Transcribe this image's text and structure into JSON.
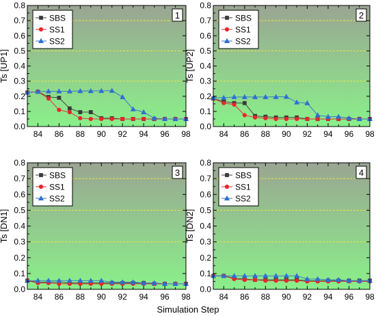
{
  "chart_data": {
    "type": "line",
    "xlabel": "Simulation Step",
    "xlim": [
      83,
      98
    ],
    "ylim": [
      0,
      0.8
    ],
    "x_ticks": [
      84,
      86,
      88,
      90,
      92,
      94,
      96,
      98
    ],
    "y_ticks": [
      0,
      0.1,
      0.2,
      0.3,
      0.4,
      0.5,
      0.6,
      0.7,
      0.8
    ],
    "y_tick_labels": [
      "0.0",
      "0.1",
      "0.2",
      "0.3",
      "0.4",
      "0.5",
      "0.6",
      "0.7",
      "0.8"
    ],
    "reference_lines": [
      0.3,
      0.5,
      0.7
    ],
    "legend_placement": "top-left",
    "colors": {
      "SBS": "#3a3a3a",
      "SS1": "#e8262b",
      "SS2": "#2f6fd1",
      "reference_line": "#f2e63a",
      "background_top": "#9aa592",
      "background_bottom": "#8af08a"
    },
    "panels": [
      {
        "id": "1",
        "ylabel": "Ts [UP1]",
        "x": [
          83,
          84,
          85,
          86,
          87,
          88,
          89,
          90,
          91,
          92,
          93,
          94,
          95,
          96,
          97,
          98
        ],
        "series": [
          {
            "name": "SBS",
            "marker": "square",
            "values": [
              0.225,
              0.23,
              0.195,
              0.19,
              0.12,
              0.095,
              0.095,
              0.055,
              0.055,
              0.05,
              0.05,
              0.05,
              0.05,
              0.05,
              0.05,
              0.05
            ]
          },
          {
            "name": "SS1",
            "marker": "circle",
            "values": [
              0.225,
              0.23,
              0.185,
              0.11,
              0.095,
              0.055,
              0.05,
              0.05,
              0.05,
              0.05,
              0.05,
              0.05,
              0.05,
              0.05,
              0.05,
              0.05
            ]
          },
          {
            "name": "SS2",
            "marker": "triangle",
            "values": [
              0.225,
              0.23,
              0.233,
              0.233,
              0.233,
              0.235,
              0.235,
              0.236,
              0.237,
              0.195,
              0.115,
              0.095,
              0.055,
              0.05,
              0.05,
              0.05
            ]
          }
        ]
      },
      {
        "id": "2",
        "ylabel": "Ts [UP2]",
        "x": [
          83,
          84,
          85,
          86,
          87,
          88,
          89,
          90,
          91,
          92,
          93,
          94,
          95,
          96,
          97,
          98
        ],
        "series": [
          {
            "name": "SBS",
            "marker": "square",
            "values": [
              0.185,
              0.165,
              0.155,
              0.155,
              0.07,
              0.065,
              0.06,
              0.06,
              0.06,
              0.05,
              0.05,
              0.05,
              0.05,
              0.05,
              0.05,
              0.05
            ]
          },
          {
            "name": "SS1",
            "marker": "circle",
            "values": [
              0.185,
              0.155,
              0.145,
              0.075,
              0.06,
              0.055,
              0.05,
              0.05,
              0.05,
              0.05,
              0.05,
              0.05,
              0.05,
              0.05,
              0.05,
              0.05
            ]
          },
          {
            "name": "SS2",
            "marker": "triangle",
            "values": [
              0.19,
              0.19,
              0.195,
              0.195,
              0.195,
              0.195,
              0.196,
              0.197,
              0.16,
              0.155,
              0.075,
              0.065,
              0.065,
              0.055,
              0.05,
              0.05
            ]
          }
        ]
      },
      {
        "id": "3",
        "ylabel": "Ts [DN1]",
        "x": [
          83,
          84,
          85,
          86,
          87,
          88,
          89,
          90,
          91,
          92,
          93,
          94,
          95,
          96,
          97,
          98
        ],
        "series": [
          {
            "name": "SBS",
            "marker": "square",
            "values": [
              0.055,
              0.045,
              0.045,
              0.045,
              0.04,
              0.04,
              0.04,
              0.04,
              0.04,
              0.04,
              0.04,
              0.04,
              0.035,
              0.035,
              0.035,
              0.035
            ]
          },
          {
            "name": "SS1",
            "marker": "circle",
            "values": [
              0.055,
              0.04,
              0.04,
              0.035,
              0.035,
              0.035,
              0.035,
              0.035,
              0.035,
              0.035,
              0.035,
              0.035,
              0.035,
              0.035,
              0.035,
              0.035
            ]
          },
          {
            "name": "SS2",
            "marker": "triangle",
            "values": [
              0.055,
              0.055,
              0.055,
              0.055,
              0.055,
              0.055,
              0.055,
              0.055,
              0.045,
              0.045,
              0.045,
              0.04,
              0.04,
              0.035,
              0.035,
              0.035
            ]
          }
        ]
      },
      {
        "id": "4",
        "ylabel": "Ts [DN2]",
        "x": [
          83,
          84,
          85,
          86,
          87,
          88,
          89,
          90,
          91,
          92,
          93,
          94,
          95,
          96,
          97,
          98
        ],
        "series": [
          {
            "name": "SBS",
            "marker": "square",
            "values": [
              0.085,
              0.085,
              0.07,
              0.065,
              0.06,
              0.06,
              0.06,
              0.06,
              0.06,
              0.055,
              0.055,
              0.055,
              0.055,
              0.055,
              0.055,
              0.055
            ]
          },
          {
            "name": "SS1",
            "marker": "circle",
            "values": [
              0.085,
              0.085,
              0.065,
              0.06,
              0.06,
              0.055,
              0.055,
              0.055,
              0.055,
              0.05,
              0.05,
              0.05,
              0.05,
              0.05,
              0.05,
              0.05
            ]
          },
          {
            "name": "SS2",
            "marker": "triangle",
            "values": [
              0.085,
              0.085,
              0.085,
              0.085,
              0.085,
              0.085,
              0.085,
              0.085,
              0.085,
              0.065,
              0.065,
              0.06,
              0.06,
              0.055,
              0.055,
              0.055
            ]
          }
        ]
      }
    ]
  }
}
